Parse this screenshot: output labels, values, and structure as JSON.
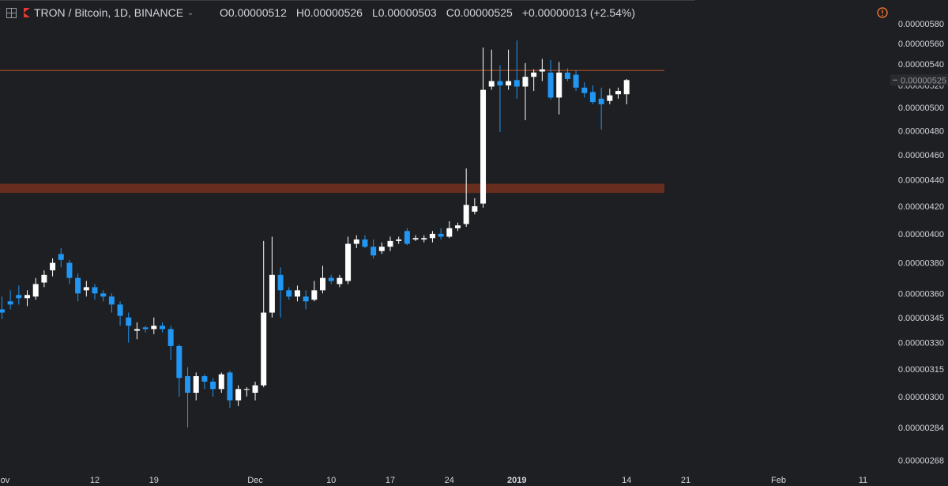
{
  "header": {
    "symbol": "TRON / Bitcoin, 1D, BINANCE",
    "open_label": "O",
    "open": "0.00000512",
    "high_label": "H",
    "high": "0.00000526",
    "low_label": "L",
    "low": "0.00000503",
    "close_label": "C",
    "close": "0.00000525",
    "change": "+0.00000013 (+2.54%)"
  },
  "colors": {
    "background": "#1e1f22",
    "up": "#ffffff",
    "down": "#2196f3",
    "resistance_line": "#c1542c",
    "support_zone": "#6b2e1f",
    "alert": "#e5702d"
  },
  "chart_data": {
    "type": "candlestick",
    "title": "TRON / Bitcoin, 1D, BINANCE",
    "price_scale": "log",
    "y_ticks": [
      "0.00000580",
      "0.00000560",
      "0.00000540",
      "0.00000520",
      "0.00000500",
      "0.00000480",
      "0.00000460",
      "0.00000440",
      "0.00000420",
      "0.00000400",
      "0.00000380",
      "0.00000360",
      "0.00000345",
      "0.00000330",
      "0.00000315",
      "0.00000300",
      "0.00000284",
      "0.00000268"
    ],
    "last_price": "0.00000525",
    "x_ticks": [
      "Nov",
      "12",
      "19",
      "Dec",
      "10",
      "17",
      "24",
      "2019",
      "14",
      "21",
      "Feb",
      "11"
    ],
    "first_date": "2018-11-01",
    "candles": [
      [
        3.5,
        3.48,
        3.58,
        3.44
      ],
      [
        3.55,
        3.53,
        3.62,
        3.5
      ],
      [
        3.59,
        3.57,
        3.65,
        3.53
      ],
      [
        3.57,
        3.59,
        3.62,
        3.52
      ],
      [
        3.58,
        3.66,
        3.7,
        3.56
      ],
      [
        3.67,
        3.72,
        3.75,
        3.64
      ],
      [
        3.75,
        3.8,
        3.83,
        3.71
      ],
      [
        3.86,
        3.82,
        3.9,
        3.77
      ],
      [
        3.8,
        3.7,
        3.82,
        3.66
      ],
      [
        3.7,
        3.6,
        3.73,
        3.55
      ],
      [
        3.62,
        3.64,
        3.68,
        3.58
      ],
      [
        3.64,
        3.6,
        3.66,
        3.56
      ],
      [
        3.6,
        3.58,
        3.62,
        3.55
      ],
      [
        3.58,
        3.53,
        3.6,
        3.48
      ],
      [
        3.53,
        3.46,
        3.55,
        3.4
      ],
      [
        3.45,
        3.4,
        3.48,
        3.3
      ],
      [
        3.37,
        3.38,
        3.42,
        3.32
      ],
      [
        3.39,
        3.38,
        3.4,
        3.36
      ],
      [
        3.38,
        3.4,
        3.45,
        3.35
      ],
      [
        3.4,
        3.38,
        3.42,
        3.36
      ],
      [
        3.38,
        3.28,
        3.4,
        3.2
      ],
      [
        3.28,
        3.1,
        3.29,
        3.0
      ],
      [
        3.11,
        3.02,
        3.16,
        2.84
      ],
      [
        3.02,
        3.11,
        3.13,
        2.98
      ],
      [
        3.11,
        3.08,
        3.12,
        3.04
      ],
      [
        3.08,
        3.04,
        3.1,
        3.0
      ],
      [
        3.04,
        3.12,
        3.13,
        3.02
      ],
      [
        3.13,
        2.98,
        3.14,
        2.94
      ],
      [
        2.98,
        3.04,
        3.06,
        2.95
      ],
      [
        3.04,
        3.04,
        3.05,
        3.0
      ],
      [
        3.02,
        3.06,
        3.08,
        2.98
      ],
      [
        3.06,
        3.48,
        3.95,
        3.05
      ],
      [
        3.48,
        3.72,
        3.98,
        3.45
      ],
      [
        3.72,
        3.62,
        3.77,
        3.45
      ],
      [
        3.62,
        3.58,
        3.64,
        3.56
      ],
      [
        3.58,
        3.62,
        3.65,
        3.55
      ],
      [
        3.58,
        3.55,
        3.62,
        3.5
      ],
      [
        3.56,
        3.62,
        3.68,
        3.55
      ],
      [
        3.62,
        3.7,
        3.78,
        3.6
      ],
      [
        3.7,
        3.68,
        3.72,
        3.66
      ],
      [
        3.66,
        3.7,
        3.72,
        3.64
      ],
      [
        3.68,
        3.93,
        3.98,
        3.66
      ],
      [
        3.93,
        3.96,
        3.99,
        3.9
      ],
      [
        3.96,
        3.91,
        3.99,
        3.9
      ],
      [
        3.91,
        3.85,
        3.96,
        3.83
      ],
      [
        3.88,
        3.91,
        3.94,
        3.86
      ],
      [
        3.91,
        3.95,
        3.98,
        3.88
      ],
      [
        3.95,
        3.96,
        3.98,
        3.93
      ],
      [
        4.02,
        3.93,
        4.04,
        3.92
      ],
      [
        3.96,
        3.97,
        3.99,
        3.95
      ],
      [
        3.96,
        3.97,
        3.99,
        3.94
      ],
      [
        3.97,
        4.0,
        4.02,
        3.94
      ],
      [
        4.0,
        3.98,
        4.04,
        3.96
      ],
      [
        3.98,
        4.04,
        4.09,
        3.97
      ],
      [
        4.04,
        4.06,
        4.08,
        4.02
      ],
      [
        4.07,
        4.21,
        4.49,
        4.05
      ],
      [
        4.16,
        4.2,
        4.26,
        4.14
      ],
      [
        4.22,
        5.16,
        5.56,
        4.19
      ],
      [
        5.19,
        5.24,
        5.54,
        5.16
      ],
      [
        5.24,
        5.2,
        5.39,
        4.79
      ],
      [
        5.2,
        5.24,
        5.54,
        5.16
      ],
      [
        5.25,
        5.19,
        5.63,
        5.08
      ],
      [
        5.19,
        5.28,
        5.41,
        4.89
      ],
      [
        5.28,
        5.32,
        5.35,
        5.15
      ],
      [
        5.33,
        5.35,
        5.45,
        5.24
      ],
      [
        5.32,
        5.09,
        5.44,
        5.07
      ],
      [
        5.09,
        5.32,
        5.42,
        4.94
      ],
      [
        5.32,
        5.26,
        5.36,
        5.24
      ],
      [
        5.3,
        5.18,
        5.34,
        5.15
      ],
      [
        5.18,
        5.13,
        5.23,
        5.09
      ],
      [
        5.14,
        5.05,
        5.2,
        5.03
      ],
      [
        5.08,
        5.03,
        5.18,
        4.81
      ],
      [
        5.06,
        5.11,
        5.17,
        5.03
      ],
      [
        5.12,
        5.15,
        5.18,
        5.08
      ],
      [
        5.12,
        5.25,
        5.26,
        5.03
      ]
    ],
    "candles_units": "values ×1e-6 BTC, [open, close, high, low]",
    "resistance_level": 5.34,
    "support_zone": [
      4.3,
      4.37
    ]
  }
}
